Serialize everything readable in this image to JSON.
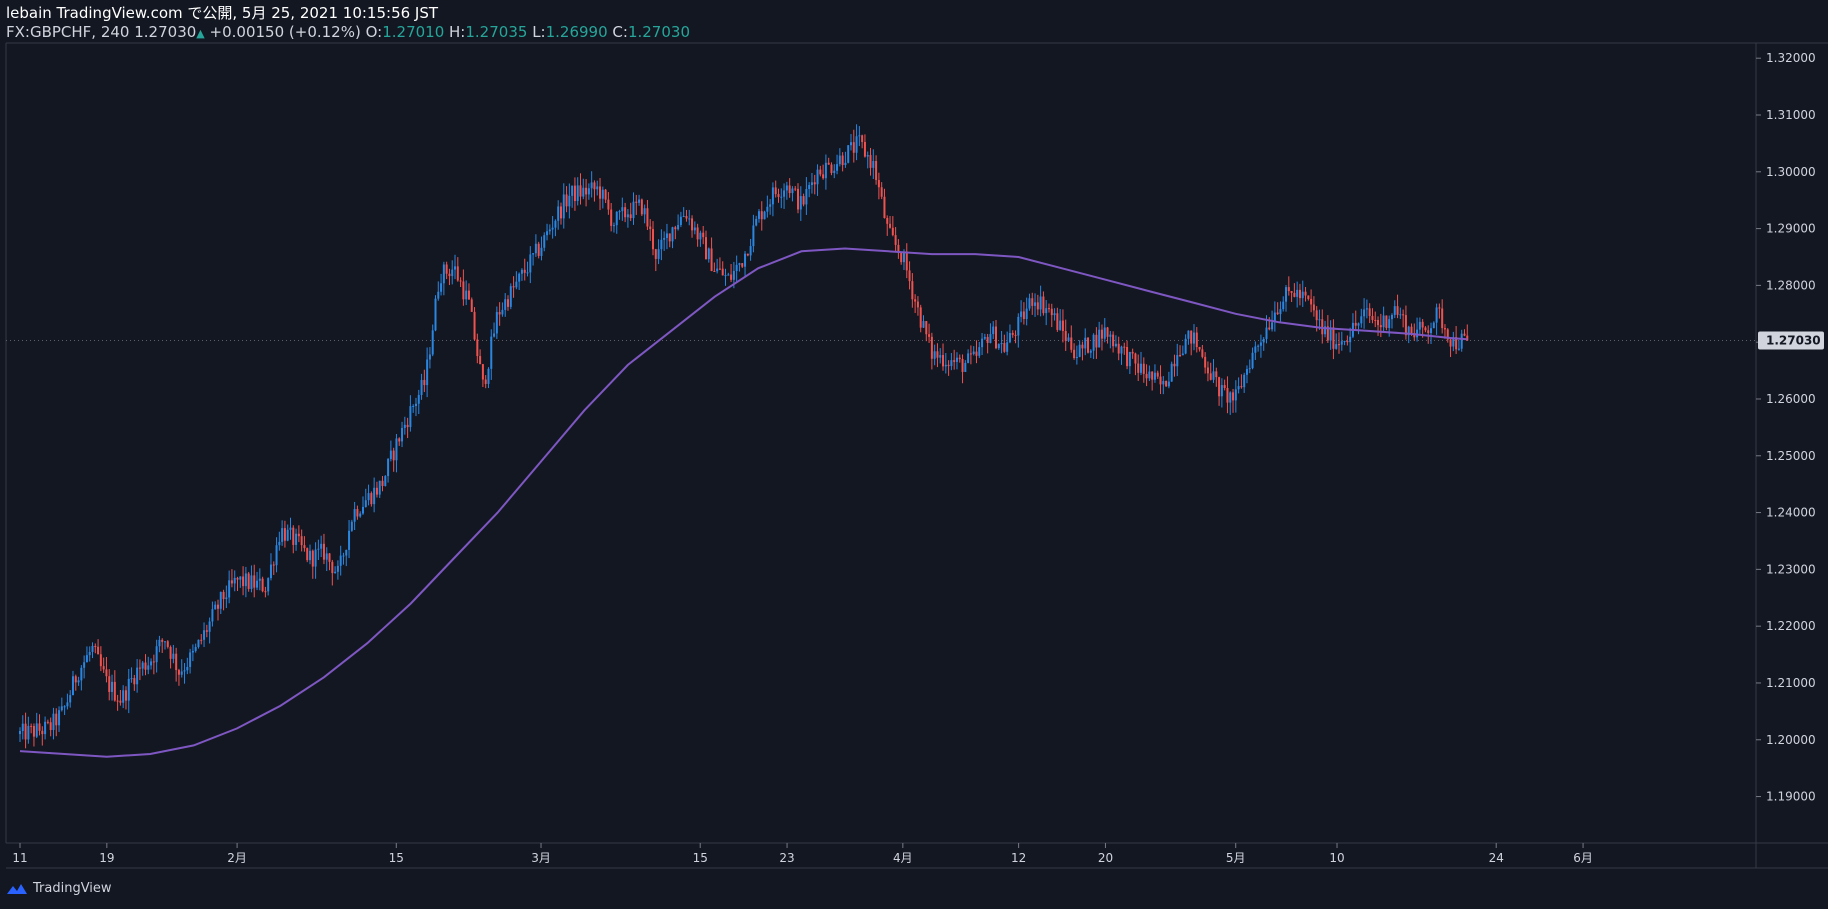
{
  "header": {
    "publish_line": "lebain TradingView.com で公開, 5月 25, 2021 10:15:56 JST",
    "symbol": "FX:GBPCHF, 240",
    "last_price": "1.27030",
    "change": "+0.00150 (+0.12%)",
    "o_label": "O:",
    "o_value": "1.27010",
    "h_label": "H:",
    "h_value": "1.27035",
    "l_label": "L:",
    "l_value": "1.26990",
    "c_label": "C:",
    "c_value": "1.27030"
  },
  "brand": {
    "name": "TradingView"
  },
  "colors": {
    "background": "#131722",
    "up_candle": "#2b86e0",
    "down_candle": "#ef5350",
    "ma_line": "#7e57c2",
    "axis_text": "#d1d4dc",
    "last_price_label_bg": "#d1d4dc",
    "last_price_label_text": "#131722"
  },
  "chart_data": {
    "type": "line",
    "instrument": "FX:GBPCHF",
    "timeframe": "240",
    "ylim": [
      1.182,
      1.3225
    ],
    "y_ticks": [
      "1.19000",
      "1.20000",
      "1.21000",
      "1.22000",
      "1.23000",
      "1.24000",
      "1.25000",
      "1.26000",
      "1.27000",
      "1.28000",
      "1.29000",
      "1.30000",
      "1.31000",
      "1.32000"
    ],
    "y_tick_values": [
      1.19,
      1.2,
      1.21,
      1.22,
      1.23,
      1.24,
      1.25,
      1.26,
      1.27,
      1.28,
      1.29,
      1.3,
      1.31,
      1.32
    ],
    "x_ticks": [
      "11",
      "19",
      "2月",
      "15",
      "3月",
      "15",
      "23",
      "4月",
      "12",
      "20",
      "5月",
      "10",
      "24",
      "6月"
    ],
    "x_tick_index": [
      0,
      6,
      15,
      26,
      36,
      47,
      53,
      61,
      69,
      75,
      84,
      91,
      102,
      108
    ],
    "last_price": 1.2703,
    "last_price_label": "1.27030",
    "price_path": [
      [
        0,
        1.201
      ],
      [
        2,
        1.202
      ],
      [
        3,
        1.205
      ],
      [
        4,
        1.212
      ],
      [
        5,
        1.216
      ],
      [
        6,
        1.21
      ],
      [
        7,
        1.207
      ],
      [
        8,
        1.212
      ],
      [
        9,
        1.214
      ],
      [
        10,
        1.218
      ],
      [
        11,
        1.212
      ],
      [
        12,
        1.215
      ],
      [
        13,
        1.22
      ],
      [
        14,
        1.225
      ],
      [
        15,
        1.228
      ],
      [
        17,
        1.227
      ],
      [
        18,
        1.237
      ],
      [
        19,
        1.235
      ],
      [
        20,
        1.232
      ],
      [
        21,
        1.233
      ],
      [
        22,
        1.229
      ],
      [
        23,
        1.24
      ],
      [
        25,
        1.245
      ],
      [
        26,
        1.252
      ],
      [
        27,
        1.258
      ],
      [
        28,
        1.263
      ],
      [
        29,
        1.282
      ],
      [
        30,
        1.283
      ],
      [
        31,
        1.277
      ],
      [
        32,
        1.262
      ],
      [
        33,
        1.275
      ],
      [
        34,
        1.279
      ],
      [
        35,
        1.283
      ],
      [
        36,
        1.287
      ],
      [
        37,
        1.292
      ],
      [
        38,
        1.296
      ],
      [
        40,
        1.297
      ],
      [
        41,
        1.291
      ],
      [
        42,
        1.293
      ],
      [
        43,
        1.294
      ],
      [
        44,
        1.285
      ],
      [
        45,
        1.29
      ],
      [
        46,
        1.293
      ],
      [
        47,
        1.288
      ],
      [
        48,
        1.283
      ],
      [
        49,
        1.281
      ],
      [
        50,
        1.285
      ],
      [
        51,
        1.292
      ],
      [
        52,
        1.296
      ],
      [
        53,
        1.298
      ],
      [
        54,
        1.294
      ],
      [
        55,
        1.3
      ],
      [
        56,
        1.301
      ],
      [
        57,
        1.303
      ],
      [
        58,
        1.305
      ],
      [
        59,
        1.301
      ],
      [
        60,
        1.289
      ],
      [
        61,
        1.285
      ],
      [
        62,
        1.276
      ],
      [
        63,
        1.268
      ],
      [
        64,
        1.267
      ],
      [
        65,
        1.266
      ],
      [
        66,
        1.267
      ],
      [
        67,
        1.272
      ],
      [
        68,
        1.269
      ],
      [
        69,
        1.273
      ],
      [
        70,
        1.278
      ],
      [
        71,
        1.276
      ],
      [
        72,
        1.272
      ],
      [
        73,
        1.268
      ],
      [
        74,
        1.27
      ],
      [
        75,
        1.272
      ],
      [
        76,
        1.269
      ],
      [
        77,
        1.266
      ],
      [
        78,
        1.264
      ],
      [
        79,
        1.262
      ],
      [
        80,
        1.269
      ],
      [
        81,
        1.271
      ],
      [
        82,
        1.266
      ],
      [
        83,
        1.261
      ],
      [
        84,
        1.26
      ],
      [
        85,
        1.267
      ],
      [
        86,
        1.272
      ],
      [
        87,
        1.277
      ],
      [
        88,
        1.279
      ],
      [
        89,
        1.277
      ],
      [
        90,
        1.272
      ],
      [
        91,
        1.27
      ],
      [
        92,
        1.272
      ],
      [
        93,
        1.275
      ],
      [
        94,
        1.273
      ],
      [
        95,
        1.276
      ],
      [
        96,
        1.272
      ],
      [
        97,
        1.272
      ],
      [
        98,
        1.275
      ],
      [
        99,
        1.27
      ],
      [
        100,
        1.2703
      ]
    ],
    "ma_path": [
      [
        0,
        1.198
      ],
      [
        6,
        1.197
      ],
      [
        9,
        1.1975
      ],
      [
        12,
        1.199
      ],
      [
        15,
        1.202
      ],
      [
        18,
        1.206
      ],
      [
        21,
        1.211
      ],
      [
        24,
        1.217
      ],
      [
        27,
        1.224
      ],
      [
        30,
        1.232
      ],
      [
        33,
        1.24
      ],
      [
        36,
        1.249
      ],
      [
        39,
        1.258
      ],
      [
        42,
        1.266
      ],
      [
        45,
        1.272
      ],
      [
        48,
        1.278
      ],
      [
        51,
        1.283
      ],
      [
        54,
        1.286
      ],
      [
        57,
        1.2865
      ],
      [
        60,
        1.286
      ],
      [
        63,
        1.2855
      ],
      [
        66,
        1.2855
      ],
      [
        69,
        1.285
      ],
      [
        72,
        1.283
      ],
      [
        75,
        1.281
      ],
      [
        78,
        1.279
      ],
      [
        81,
        1.277
      ],
      [
        84,
        1.275
      ],
      [
        87,
        1.2735
      ],
      [
        90,
        1.2725
      ],
      [
        93,
        1.272
      ],
      [
        96,
        1.2715
      ],
      [
        99,
        1.2707
      ],
      [
        100,
        1.2705
      ]
    ]
  }
}
